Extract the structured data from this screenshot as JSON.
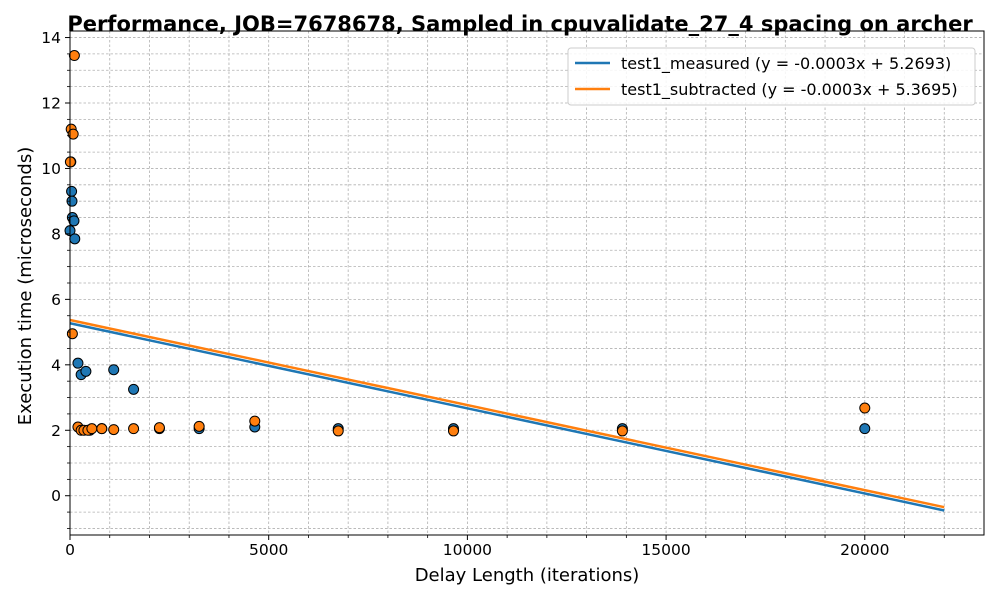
{
  "chart_data": {
    "type": "scatter",
    "title": "Performance, JOB=7678678, Sampled in cpuvalidate_27_4 spacing on archer",
    "xlabel": "Delay Length (iterations)",
    "ylabel": "Execution time (microseconds)",
    "xlim": [
      0,
      23000
    ],
    "ylim": [
      -1.2,
      14.2
    ],
    "x_ticks": [
      0,
      5000,
      10000,
      15000,
      20000
    ],
    "x_tick_labels": [
      "0",
      "5000",
      "10000",
      "15000",
      "20000"
    ],
    "y_ticks": [
      0,
      2,
      4,
      6,
      8,
      10,
      12,
      14
    ],
    "y_tick_labels": [
      "0",
      "2",
      "4",
      "6",
      "8",
      "10",
      "12",
      "14"
    ],
    "grid": true,
    "legend_position": "top-right",
    "series": [
      {
        "name": "test1_measured",
        "color": "#1f77b4",
        "points": [
          [
            0,
            8.1
          ],
          [
            20,
            10.2
          ],
          [
            40,
            9.3
          ],
          [
            50,
            9.0
          ],
          [
            60,
            8.5
          ],
          [
            100,
            8.4
          ],
          [
            120,
            7.85
          ],
          [
            200,
            4.05
          ],
          [
            280,
            3.7
          ],
          [
            400,
            3.8
          ],
          [
            500,
            2.0
          ],
          [
            800,
            2.05
          ],
          [
            1100,
            3.85
          ],
          [
            1600,
            3.25
          ],
          [
            2250,
            2.05
          ],
          [
            3250,
            2.05
          ],
          [
            4650,
            2.1
          ],
          [
            6750,
            2.05
          ],
          [
            9650,
            2.05
          ],
          [
            13900,
            2.05
          ],
          [
            20000,
            2.05
          ]
        ],
        "fit": {
          "label": "test1_measured (y = -0.0003x + 5.2693)",
          "slope": -0.00026,
          "intercept": 5.2693,
          "x_range": [
            0,
            22000
          ]
        }
      },
      {
        "name": "test1_subtracted",
        "color": "#ff7f0e",
        "points": [
          [
            10,
            10.2
          ],
          [
            30,
            11.2
          ],
          [
            60,
            4.95
          ],
          [
            80,
            11.05
          ],
          [
            110,
            13.45
          ],
          [
            200,
            2.1
          ],
          [
            280,
            2.0
          ],
          [
            350,
            2.0
          ],
          [
            450,
            2.0
          ],
          [
            550,
            2.05
          ],
          [
            800,
            2.05
          ],
          [
            1100,
            2.02
          ],
          [
            1600,
            2.05
          ],
          [
            2250,
            2.08
          ],
          [
            3250,
            2.12
          ],
          [
            4650,
            2.28
          ],
          [
            6750,
            1.98
          ],
          [
            9650,
            1.98
          ],
          [
            13900,
            1.98
          ],
          [
            20000,
            2.68
          ]
        ],
        "fit": {
          "label": "test1_subtracted (y = -0.0003x + 5.3695)",
          "slope": -0.00026,
          "intercept": 5.3695,
          "x_range": [
            0,
            22000
          ]
        }
      }
    ]
  }
}
